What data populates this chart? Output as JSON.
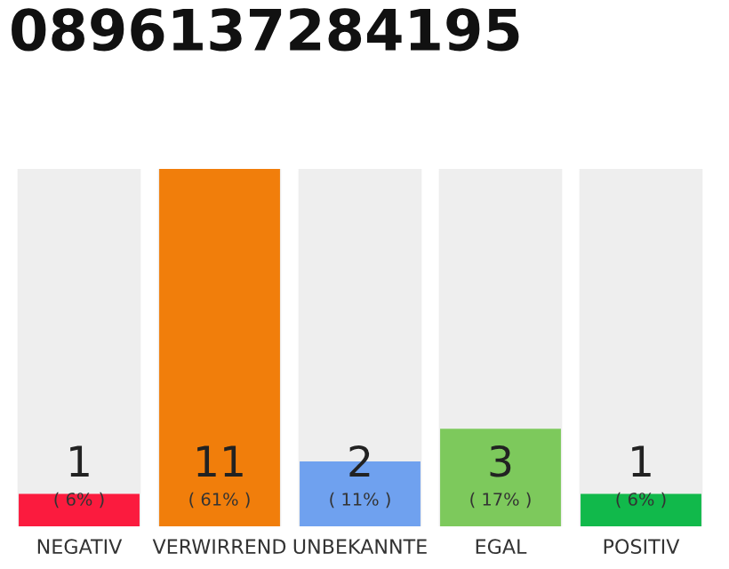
{
  "chart_data": {
    "type": "bar",
    "title": "0896137284195",
    "categories": [
      "NEGATIV",
      "VERWIRREND",
      "UNBEKANNTE",
      "EGAL",
      "POSITIV"
    ],
    "values": [
      1,
      11,
      2,
      3,
      1
    ],
    "colors": [
      "#fb1b3e",
      "#f17e0b",
      "#6fa1ef",
      "#7dc95c",
      "#11b94b"
    ],
    "value_labels": [
      "1",
      "11",
      "2",
      "3",
      "1"
    ],
    "annotations": [
      "( 6% )",
      "( 61% )",
      "( 11% )",
      "( 17% )",
      "( 6% )"
    ],
    "grid": false,
    "legend": false
  }
}
